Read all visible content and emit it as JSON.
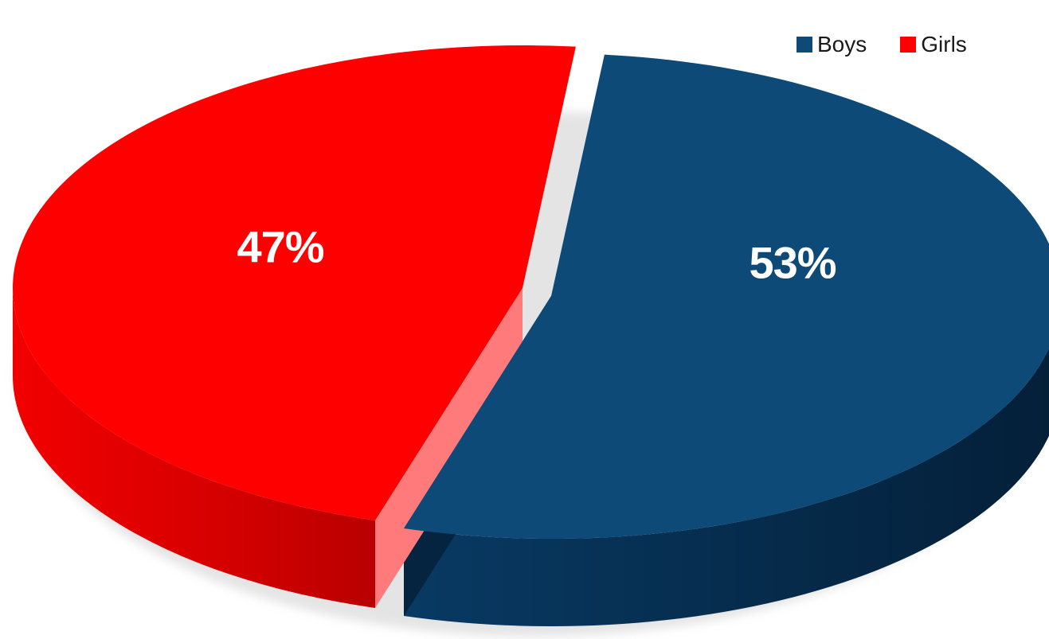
{
  "chart_data": {
    "type": "pie",
    "title": "",
    "legend_position": "top-right",
    "style": "3d-exploded",
    "series": [
      {
        "name": "Boys",
        "value": 53,
        "label": "53%",
        "color": "#0d4a78",
        "side_color": "#062b4d"
      },
      {
        "name": "Girls",
        "value": 47,
        "label": "47%",
        "color": "#ff0000",
        "side_color": "#c90000"
      }
    ]
  }
}
